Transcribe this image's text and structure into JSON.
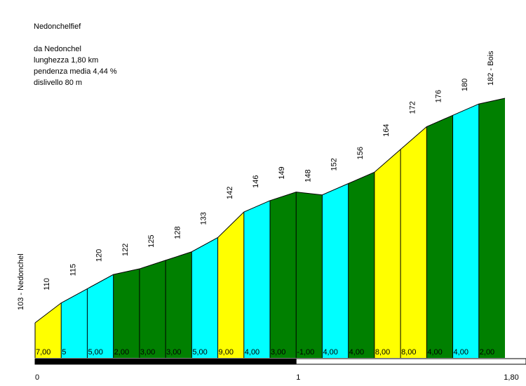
{
  "header": {
    "title": "Nedonchelfief",
    "from": "da Nedonchel",
    "length": "lunghezza 1,80 km",
    "avg_grade": "pendenza media 4,44 %",
    "elevation_gain": "dislivello 80 m"
  },
  "colors": {
    "grade_low": "#00ffff",
    "grade_mid": "#008000",
    "grade_high": "#ffff00",
    "outline": "#000000",
    "scale_bar": "#000000"
  },
  "chart_data": {
    "type": "area",
    "title": "Nedonchelfief",
    "xlabel": "",
    "ylabel": "",
    "x_unit": "km",
    "y_unit": "m",
    "xlim": [
      0,
      1.8
    ],
    "x_ticks": [
      {
        "value": 0,
        "label": "0"
      },
      {
        "value": 1,
        "label": "1"
      },
      {
        "value": 1.8,
        "label": "1,80"
      }
    ],
    "points": [
      {
        "x": 0.0,
        "y": 103,
        "label": "103 - Nedonchel"
      },
      {
        "x": 0.1,
        "y": 110,
        "label": "110"
      },
      {
        "x": 0.2,
        "y": 115,
        "label": "115"
      },
      {
        "x": 0.3,
        "y": 120,
        "label": "120"
      },
      {
        "x": 0.4,
        "y": 122,
        "label": "122"
      },
      {
        "x": 0.5,
        "y": 125,
        "label": "125"
      },
      {
        "x": 0.6,
        "y": 128,
        "label": "128"
      },
      {
        "x": 0.7,
        "y": 133,
        "label": "133"
      },
      {
        "x": 0.8,
        "y": 142,
        "label": "142"
      },
      {
        "x": 0.9,
        "y": 146,
        "label": "146"
      },
      {
        "x": 1.0,
        "y": 149,
        "label": "149"
      },
      {
        "x": 1.1,
        "y": 148,
        "label": "148"
      },
      {
        "x": 1.2,
        "y": 152,
        "label": "152"
      },
      {
        "x": 1.3,
        "y": 156,
        "label": "156"
      },
      {
        "x": 1.4,
        "y": 164,
        "label": "164"
      },
      {
        "x": 1.5,
        "y": 172,
        "label": "172"
      },
      {
        "x": 1.6,
        "y": 176,
        "label": "176"
      },
      {
        "x": 1.7,
        "y": 180,
        "label": "180"
      },
      {
        "x": 1.8,
        "y": 182,
        "label": "182 - Bois"
      }
    ],
    "segments": [
      {
        "grade": "7,00",
        "color": "#ffff00"
      },
      {
        "grade": "5",
        "color": "#00ffff"
      },
      {
        "grade": "5,00",
        "color": "#00ffff"
      },
      {
        "grade": "2,00",
        "color": "#008000"
      },
      {
        "grade": "3,00",
        "color": "#008000"
      },
      {
        "grade": "3,00",
        "color": "#008000"
      },
      {
        "grade": "5,00",
        "color": "#00ffff"
      },
      {
        "grade": "9,00",
        "color": "#ffff00"
      },
      {
        "grade": "4,00",
        "color": "#00ffff"
      },
      {
        "grade": "3,00",
        "color": "#008000"
      },
      {
        "grade": "-1,00",
        "color": "#008000"
      },
      {
        "grade": "4,00",
        "color": "#00ffff"
      },
      {
        "grade": "4,00",
        "color": "#008000"
      },
      {
        "grade": "8,00",
        "color": "#ffff00"
      },
      {
        "grade": "8,00",
        "color": "#ffff00"
      },
      {
        "grade": "4,00",
        "color": "#008000"
      },
      {
        "grade": "4,00",
        "color": "#00ffff"
      },
      {
        "grade": "2,00",
        "color": "#008000"
      }
    ],
    "scale_bar": [
      {
        "from": 0,
        "to": 1,
        "fill": "black"
      },
      {
        "from": 1,
        "to": 1.8,
        "fill": "white"
      }
    ],
    "grid": false,
    "legend": "none"
  }
}
